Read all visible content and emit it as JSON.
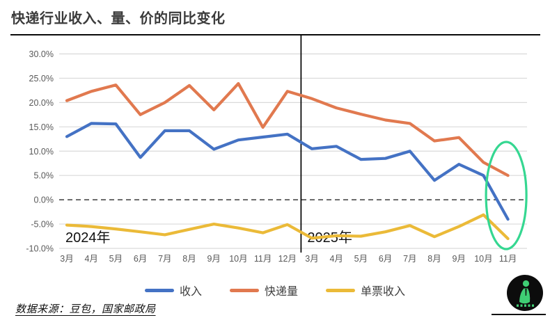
{
  "footer": {
    "source": "数据来源：豆包，国家邮政局"
  },
  "chart_data": {
    "type": "line",
    "title": "快递行业收入、量、价的同比变化",
    "xlabel": "",
    "ylabel": "",
    "ylim": [
      -10,
      30
    ],
    "ytick_step": 5,
    "y_ticks": [
      "30.0%",
      "25.0%",
      "20.0%",
      "15.0%",
      "10.0%",
      "5.0%",
      "0.0%",
      "-5.0%",
      "-10.0%"
    ],
    "zero_line_style": "dashed",
    "grid": "horizontal",
    "legend_position": "bottom",
    "categories": [
      "3月",
      "4月",
      "5月",
      "6月",
      "7月",
      "8月",
      "9月",
      "10月",
      "11月",
      "12月",
      "3月",
      "4月",
      "5月",
      "6月",
      "7月",
      "8月",
      "9月",
      "10月",
      "11月"
    ],
    "year_labels": {
      "left": "2024年",
      "right": "2025年"
    },
    "separator_after_index": 9,
    "highlight_ellipse": {
      "index": 18,
      "color": "#35d791"
    },
    "series": [
      {
        "id": "revenue",
        "name": "收入",
        "color": "#4472c4",
        "values": [
          13.0,
          15.7,
          15.6,
          8.7,
          14.2,
          14.2,
          10.4,
          12.3,
          12.9,
          13.5,
          10.5,
          11.0,
          8.3,
          8.5,
          10.0,
          4.0,
          7.3,
          5.0,
          -4.0
        ]
      },
      {
        "id": "parcel-volume",
        "name": "快递量",
        "color": "#e1794f",
        "values": [
          20.4,
          22.3,
          23.6,
          17.5,
          20.0,
          23.5,
          18.5,
          23.9,
          14.9,
          22.3,
          20.8,
          18.9,
          17.6,
          16.4,
          15.7,
          12.1,
          12.8,
          7.7,
          5.0
        ]
      },
      {
        "id": "per-parcel-revenue",
        "name": "单票收入",
        "color": "#ebba38",
        "values": [
          -5.2,
          -5.5,
          -6.0,
          -6.6,
          -7.2,
          -6.1,
          -5.0,
          -5.8,
          -6.8,
          -5.1,
          -7.9,
          -7.4,
          -7.5,
          -6.6,
          -5.3,
          -7.6,
          -5.5,
          -3.1,
          -8.0
        ]
      }
    ],
    "colors": {
      "grid": "#d9d9d9",
      "zero_line": "#3a3a3a",
      "separator": "#000000",
      "tick_text": "#595959"
    }
  }
}
